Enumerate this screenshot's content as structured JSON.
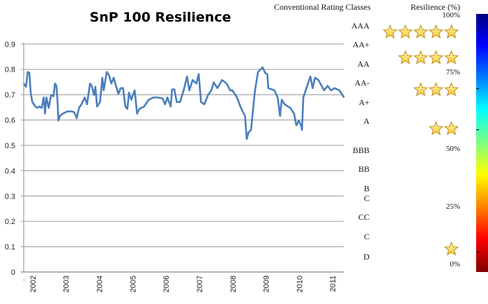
{
  "chart_data": {
    "type": "line",
    "title": "SnP 100 Resilience",
    "xlabel": "",
    "ylabel": "",
    "xlim": [
      2001.73,
      2011.33
    ],
    "ylim": [
      0,
      0.9
    ],
    "y_ticks": [
      "0",
      "0.1",
      "0.2",
      "0.3",
      "0.4",
      "0.5",
      "0.6",
      "0.7",
      "0.8",
      "0.9"
    ],
    "x_ticks": [
      "2002",
      "2003",
      "2004",
      "2005",
      "2006",
      "2007",
      "2008",
      "2009",
      "2010",
      "2011"
    ],
    "grid": "horizontal",
    "line_color": "#4a7ebb",
    "series": [
      {
        "x": [
          2001.71,
          2001.8,
          2001.85,
          2001.9,
          2001.94,
          2001.99,
          2002.06,
          2002.13,
          2002.2,
          2002.27,
          2002.33,
          2002.37,
          2002.41,
          2002.48,
          2002.55,
          2002.62,
          2002.67,
          2002.71,
          2002.75,
          2002.77,
          2002.82,
          2002.9,
          2003.04,
          2003.18,
          2003.25,
          2003.32,
          2003.39,
          2003.46,
          2003.56,
          2003.63,
          2003.72,
          2003.77,
          2003.84,
          2003.88,
          2003.93,
          2004.02,
          2004.09,
          2004.13,
          2004.22,
          2004.29,
          2004.36,
          2004.43,
          2004.5,
          2004.57,
          2004.64,
          2004.71,
          2004.78,
          2004.84,
          2004.89,
          2004.96,
          2005.03,
          2005.06,
          2005.13,
          2005.2,
          2005.34,
          2005.48,
          2005.62,
          2005.76,
          2005.9,
          2005.97,
          2006.04,
          2006.14,
          2006.18,
          2006.25,
          2006.32,
          2006.42,
          2006.53,
          2006.63,
          2006.7,
          2006.8,
          2006.91,
          2006.98,
          2007.05,
          2007.15,
          2007.26,
          2007.36,
          2007.43,
          2007.54,
          2007.68,
          2007.82,
          2007.92,
          2007.99,
          2008.13,
          2008.23,
          2008.3,
          2008.37,
          2008.42,
          2008.48,
          2008.55,
          2008.62,
          2008.67,
          2008.76,
          2008.83,
          2008.9,
          2008.97,
          2009.04,
          2009.07,
          2009.18,
          2009.25,
          2009.35,
          2009.42,
          2009.47,
          2009.56,
          2009.66,
          2009.73,
          2009.84,
          2009.91,
          2009.98,
          2010.05,
          2010.08,
          2010.12,
          2010.19,
          2010.26,
          2010.33,
          2010.4,
          2010.47,
          2010.57,
          2010.67,
          2010.74,
          2010.85,
          2010.95,
          2011.06,
          2011.2,
          2011.34
        ],
        "y": [
          0.744,
          0.731,
          0.79,
          0.786,
          0.708,
          0.671,
          0.657,
          0.648,
          0.653,
          0.648,
          0.689,
          0.625,
          0.689,
          0.648,
          0.699,
          0.694,
          0.744,
          0.735,
          0.662,
          0.598,
          0.616,
          0.625,
          0.634,
          0.634,
          0.63,
          0.607,
          0.648,
          0.662,
          0.689,
          0.662,
          0.744,
          0.735,
          0.699,
          0.731,
          0.653,
          0.671,
          0.767,
          0.717,
          0.79,
          0.776,
          0.744,
          0.767,
          0.735,
          0.703,
          0.726,
          0.726,
          0.653,
          0.644,
          0.708,
          0.68,
          0.708,
          0.717,
          0.625,
          0.644,
          0.653,
          0.68,
          0.689,
          0.689,
          0.685,
          0.662,
          0.689,
          0.653,
          0.721,
          0.721,
          0.671,
          0.671,
          0.717,
          0.772,
          0.717,
          0.758,
          0.744,
          0.781,
          0.671,
          0.662,
          0.699,
          0.717,
          0.749,
          0.726,
          0.758,
          0.744,
          0.717,
          0.717,
          0.689,
          0.653,
          0.634,
          0.616,
          0.525,
          0.552,
          0.561,
          0.653,
          0.717,
          0.79,
          0.799,
          0.808,
          0.786,
          0.781,
          0.726,
          0.721,
          0.717,
          0.689,
          0.616,
          0.68,
          0.662,
          0.653,
          0.648,
          0.625,
          0.579,
          0.598,
          0.579,
          0.561,
          0.689,
          0.717,
          0.744,
          0.772,
          0.726,
          0.767,
          0.758,
          0.735,
          0.717,
          0.735,
          0.717,
          0.726,
          0.717,
          0.689
        ]
      }
    ]
  },
  "ratings": {
    "header": "Conventional Rating Classes",
    "classes": [
      "AAA",
      "AA+",
      "AA",
      "AA-",
      "A+",
      "A",
      "BBB",
      "BB",
      "B",
      "C",
      "CC",
      "C",
      "D"
    ]
  },
  "resilience": {
    "header": "Resilience (%)",
    "percent_labels": [
      "100%",
      "75%",
      "50%",
      "25%",
      "0%"
    ],
    "star_rows": [
      5,
      4,
      3,
      2,
      1
    ],
    "star_color": "#f5c842",
    "colorbar": "jet, blue (100%) to dark red (0%)"
  }
}
